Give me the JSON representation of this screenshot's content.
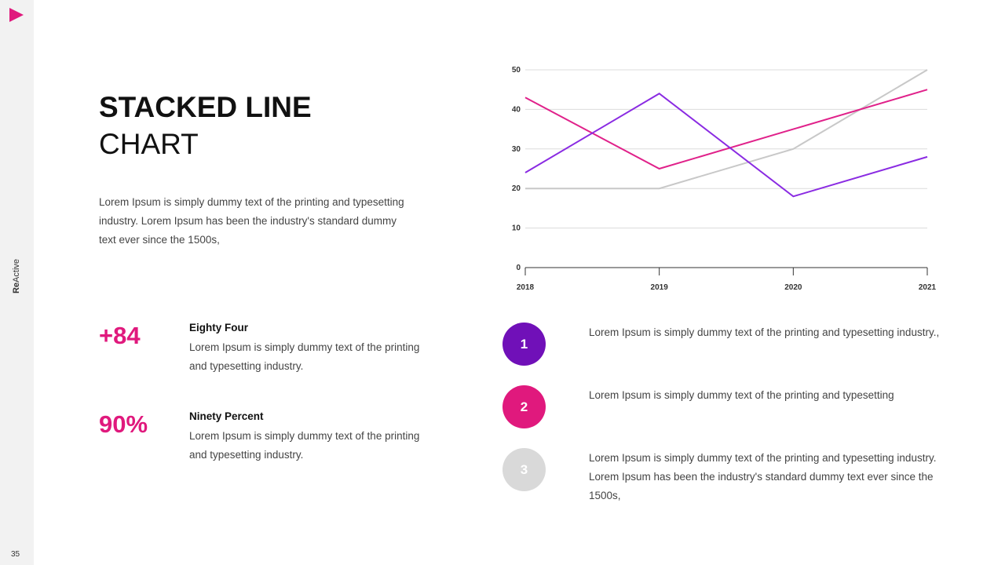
{
  "sidebar": {
    "brand_bold": "Re",
    "brand_light": "Active",
    "page_number": "35",
    "play_icon": "play-icon"
  },
  "title": {
    "line1": "STACKED LINE",
    "line2": "CHART"
  },
  "description": "Lorem Ipsum is simply dummy text of the printing and typesetting industry. Lorem Ipsum has been the industry's standard dummy text ever since the 1500s,",
  "stats": [
    {
      "value": "+84",
      "heading": "Eighty Four",
      "text": "Lorem Ipsum is simply dummy text of the printing and typesetting industry."
    },
    {
      "value": "90%",
      "heading": "Ninety Percent",
      "text": "Lorem Ipsum is simply dummy text of the printing and typesetting industry."
    }
  ],
  "items": [
    {
      "number": "1",
      "color": "#7010b8",
      "text": "Lorem Ipsum is simply dummy text of the printing and typesetting industry.,"
    },
    {
      "number": "2",
      "color": "#e0197d",
      "text": "Lorem Ipsum is simply dummy text of the printing and typesetting"
    },
    {
      "number": "3",
      "color": "#d9d9d9",
      "text": "Lorem Ipsum is simply dummy text of the printing and typesetting industry. Lorem Ipsum has been the industry's standard dummy text ever since the 1500s,"
    }
  ],
  "chart_data": {
    "type": "line",
    "categories": [
      "2018",
      "2019",
      "2020",
      "2021"
    ],
    "yticks": [
      0,
      10,
      20,
      30,
      40,
      50
    ],
    "ylim": [
      0,
      50
    ],
    "grid": true,
    "series": [
      {
        "color": "#c8c8c8",
        "values": [
          20,
          20,
          30,
          50
        ]
      },
      {
        "color": "#e0218a",
        "values": [
          43,
          25,
          35,
          45
        ]
      },
      {
        "color": "#8a2be2",
        "values": [
          24,
          44,
          18,
          28
        ]
      }
    ]
  }
}
